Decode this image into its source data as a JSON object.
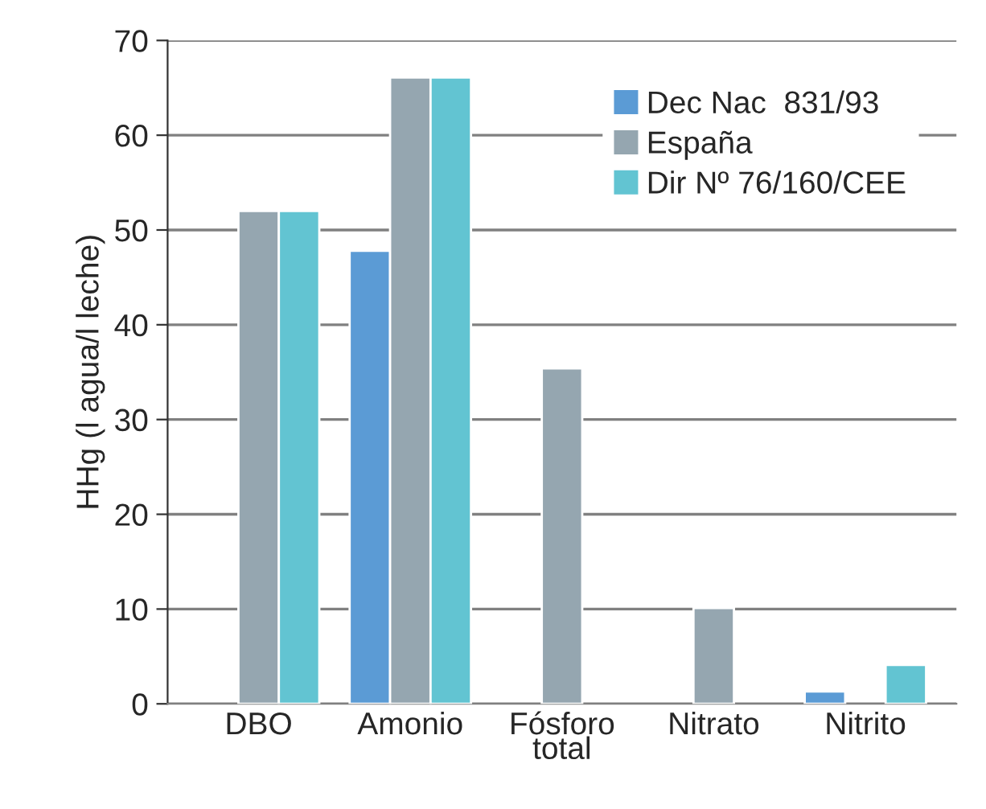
{
  "chart_data": {
    "type": "bar",
    "ylabel": "HHg (l agua/l leche)",
    "categories": [
      "DBO",
      "Amonio",
      "Fósforo\ntotal",
      "Nitrato",
      "Nitrito"
    ],
    "series": [
      {
        "name": "Dec Nac  831/93",
        "color": "#5b9bd5",
        "values": [
          null,
          47.8,
          null,
          null,
          1.3
        ]
      },
      {
        "name": "España",
        "color": "#95a6b0",
        "values": [
          52.0,
          66.1,
          35.4,
          10.1,
          null
        ]
      },
      {
        "name": "Dir Nº 76/160/CEE",
        "color": "#62c4d2",
        "values": [
          52.0,
          66.1,
          null,
          null,
          4.1
        ]
      }
    ],
    "ylim": [
      0,
      70
    ],
    "yticks": [
      0,
      10,
      20,
      30,
      40,
      50,
      60,
      70
    ],
    "grid": "y",
    "legend": "top right"
  }
}
